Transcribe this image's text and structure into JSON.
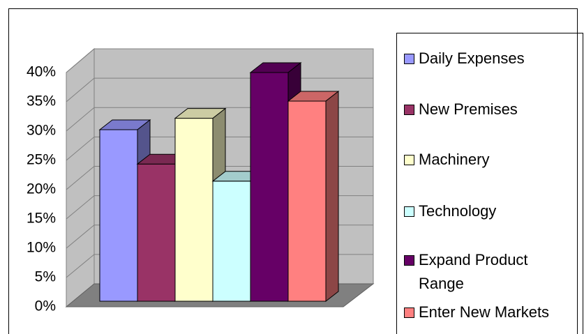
{
  "chart_data": {
    "type": "bar3d",
    "series": [
      {
        "name": "Daily Expenses",
        "color": "#9999ff",
        "values": [
          30
        ]
      },
      {
        "name": "New Premises",
        "color": "#993366",
        "values": [
          24
        ]
      },
      {
        "name": "Machinery",
        "color": "#ffffcc",
        "values": [
          32
        ]
      },
      {
        "name": "Technology",
        "color": "#ccffff",
        "values": [
          21
        ]
      },
      {
        "name": "Expand Product Range",
        "color": "#660066",
        "values": [
          40
        ]
      },
      {
        "name": "Enter New Markets",
        "color": "#ff8080",
        "values": [
          35
        ]
      }
    ],
    "ylim": [
      0,
      40
    ],
    "yticks": [
      {
        "value": 0,
        "label": "0%"
      },
      {
        "value": 5,
        "label": "5%"
      },
      {
        "value": 10,
        "label": "10%"
      },
      {
        "value": 15,
        "label": "15%"
      },
      {
        "value": 20,
        "label": "20%"
      },
      {
        "value": 25,
        "label": "25%"
      },
      {
        "value": 30,
        "label": "30%"
      },
      {
        "value": 35,
        "label": "35%"
      },
      {
        "value": 40,
        "label": "40%"
      }
    ],
    "grid": true,
    "legend": "right"
  }
}
